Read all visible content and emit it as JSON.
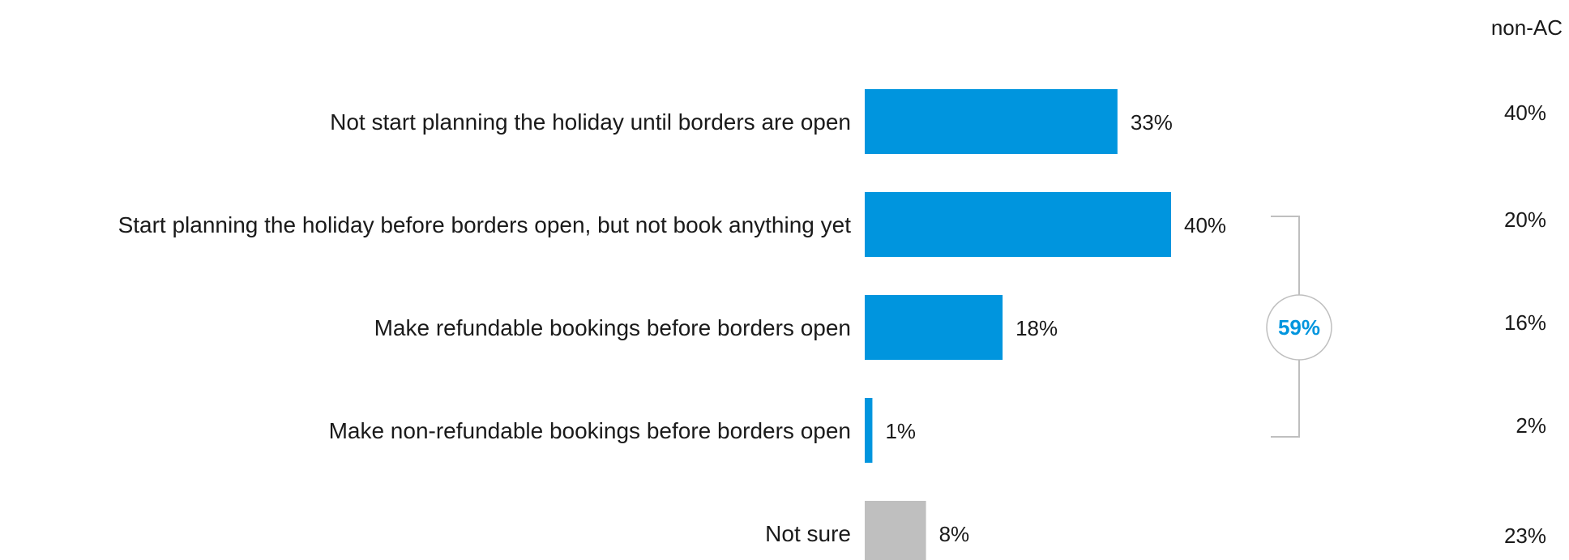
{
  "chart_data": {
    "type": "bar",
    "orientation": "horizontal",
    "categories": [
      "Not start planning the holiday until borders are open",
      "Start planning the holiday before borders open, but not book anything yet",
      "Make refundable bookings before borders open",
      "Make non-refundable bookings before borders open",
      "Not sure"
    ],
    "values": [
      33,
      40,
      18,
      1,
      8
    ],
    "value_labels": [
      "33%",
      "40%",
      "18%",
      "1%",
      "8%"
    ],
    "bar_colors": [
      "#0095DE",
      "#0095DE",
      "#0095DE",
      "#0095DE",
      "#BFBFBF"
    ],
    "xlim": [
      0,
      100
    ],
    "grid": false,
    "comparison": {
      "header": "non-AC",
      "values": [
        40,
        20,
        16,
        2,
        23
      ],
      "labels": [
        "40%",
        "20%",
        "16%",
        "2%",
        "23%"
      ]
    },
    "bracket": {
      "span": [
        1,
        3
      ],
      "total_label": "59%",
      "color": "#0095DE",
      "line_color": "#BFBFBF"
    }
  }
}
